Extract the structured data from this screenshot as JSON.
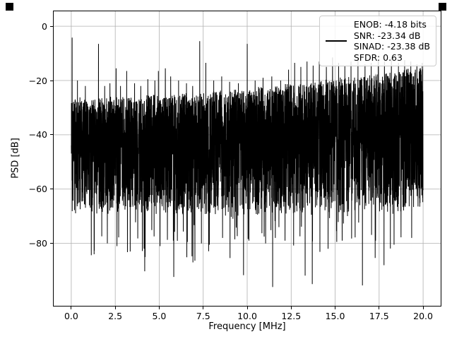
{
  "chart_data": {
    "type": "line",
    "title": "",
    "xlabel": "Frequency [MHz]",
    "ylabel": "PSD [dB]",
    "xlim": [
      -1,
      21
    ],
    "ylim": [
      -103,
      5.5
    ],
    "grid": true,
    "grid_color": "#b0b0b0",
    "line_color": "#000000",
    "background_color": "#ffffff",
    "xticks": [
      {
        "value": 0,
        "label": "0.0"
      },
      {
        "value": 2.5,
        "label": "2.5"
      },
      {
        "value": 5,
        "label": "5.0"
      },
      {
        "value": 7.5,
        "label": "7.5"
      },
      {
        "value": 10,
        "label": "10.0"
      },
      {
        "value": 12.5,
        "label": "12.5"
      },
      {
        "value": 15,
        "label": "15.0"
      },
      {
        "value": 17.5,
        "label": "17.5"
      },
      {
        "value": 20,
        "label": "20.0"
      }
    ],
    "yticks": [
      {
        "value": 0,
        "label": "0"
      },
      {
        "value": -20,
        "label": "−20"
      },
      {
        "value": -40,
        "label": "−40"
      },
      {
        "value": -60,
        "label": "−60"
      },
      {
        "value": -80,
        "label": "−80"
      }
    ],
    "legend": {
      "position": "upper right",
      "entries": [
        "ENOB: -4.18 bits",
        "SNR: -23.34 dB",
        "SINAD: -23.38 dB",
        "SFDR: 0.63"
      ]
    },
    "metrics": {
      "ENOB_bits": -4.18,
      "SNR_dB": -23.34,
      "SINAD_dB": -23.38,
      "SFDR": 0.63
    },
    "series_description": "Dense black noise-like PSD trace from 0 to 20 MHz; noise band tops out near -27 dB at 0 MHz rising to about -16 dB at 20 MHz, dense bottom near -69 dB with sparse dips to -95 dB; discrete tones listed in peaks.",
    "noise_model": {
      "n_points": 4096,
      "seed": 11,
      "x_start": 0,
      "x_end": 20,
      "top_curve": [
        -27,
        2.5,
        9
      ],
      "bottom_envelope_db": -69,
      "density_bias": 1.35,
      "jitter_db": 2,
      "tail_prob": 0.05,
      "tail_extra_db": 30
    },
    "peaks": [
      [
        0.05,
        -4.2
      ],
      [
        0.35,
        -20
      ],
      [
        0.8,
        -22
      ],
      [
        1.55,
        -6.5
      ],
      [
        1.9,
        -22
      ],
      [
        2.2,
        -21
      ],
      [
        2.55,
        -15.5
      ],
      [
        2.8,
        -22
      ],
      [
        3.15,
        -16.5
      ],
      [
        3.6,
        -21
      ],
      [
        3.95,
        -22
      ],
      [
        4.35,
        -19.5
      ],
      [
        4.75,
        -20
      ],
      [
        4.95,
        -16.5
      ],
      [
        5.35,
        -15.5
      ],
      [
        5.65,
        -18.5
      ],
      [
        6.1,
        -20
      ],
      [
        6.55,
        -21
      ],
      [
        6.9,
        -22
      ],
      [
        7.3,
        -5.5
      ],
      [
        7.65,
        -13.5
      ],
      [
        8.1,
        -20
      ],
      [
        8.55,
        -18.5
      ],
      [
        9.0,
        -20.5
      ],
      [
        9.5,
        -21
      ],
      [
        10.0,
        -6.5
      ],
      [
        10.45,
        -20
      ],
      [
        10.9,
        -19
      ],
      [
        11.4,
        -18.5
      ],
      [
        11.9,
        -20
      ],
      [
        12.35,
        -16
      ],
      [
        12.7,
        -13.5
      ],
      [
        13.05,
        -15
      ],
      [
        13.4,
        -13
      ],
      [
        13.75,
        -14.5
      ],
      [
        14.1,
        -13
      ],
      [
        14.5,
        -15
      ],
      [
        14.85,
        -11.5
      ],
      [
        15.2,
        -13.5
      ],
      [
        15.55,
        -14.5
      ],
      [
        15.9,
        -13
      ],
      [
        16.3,
        -12.5
      ],
      [
        16.7,
        -14
      ],
      [
        17.05,
        -13.5
      ],
      [
        17.45,
        -12.5
      ],
      [
        17.8,
        -13
      ],
      [
        18.2,
        -11.5
      ],
      [
        18.6,
        -13.5
      ],
      [
        18.95,
        -12.5
      ],
      [
        19.3,
        -13
      ],
      [
        19.65,
        -14
      ],
      [
        19.95,
        -13.5
      ]
    ],
    "dips": [
      [
        1.3,
        -84
      ],
      [
        2.05,
        -80
      ],
      [
        2.6,
        -81
      ],
      [
        3.35,
        -83
      ],
      [
        4.2,
        -85
      ],
      [
        5.05,
        -81
      ],
      [
        5.8,
        -79
      ],
      [
        6.6,
        -79.5
      ],
      [
        7.4,
        -80
      ],
      [
        7.85,
        -80.5
      ],
      [
        8.6,
        -78
      ],
      [
        9.3,
        -78.5
      ],
      [
        10.1,
        -79
      ],
      [
        11.05,
        -80
      ],
      [
        11.6,
        -78
      ],
      [
        12.15,
        -79
      ],
      [
        13.7,
        -95
      ],
      [
        14.6,
        -82
      ],
      [
        15.4,
        -79
      ],
      [
        16.55,
        -95.5
      ],
      [
        17.3,
        -79
      ],
      [
        18.35,
        -80.5
      ],
      [
        19.35,
        -78
      ]
    ]
  }
}
